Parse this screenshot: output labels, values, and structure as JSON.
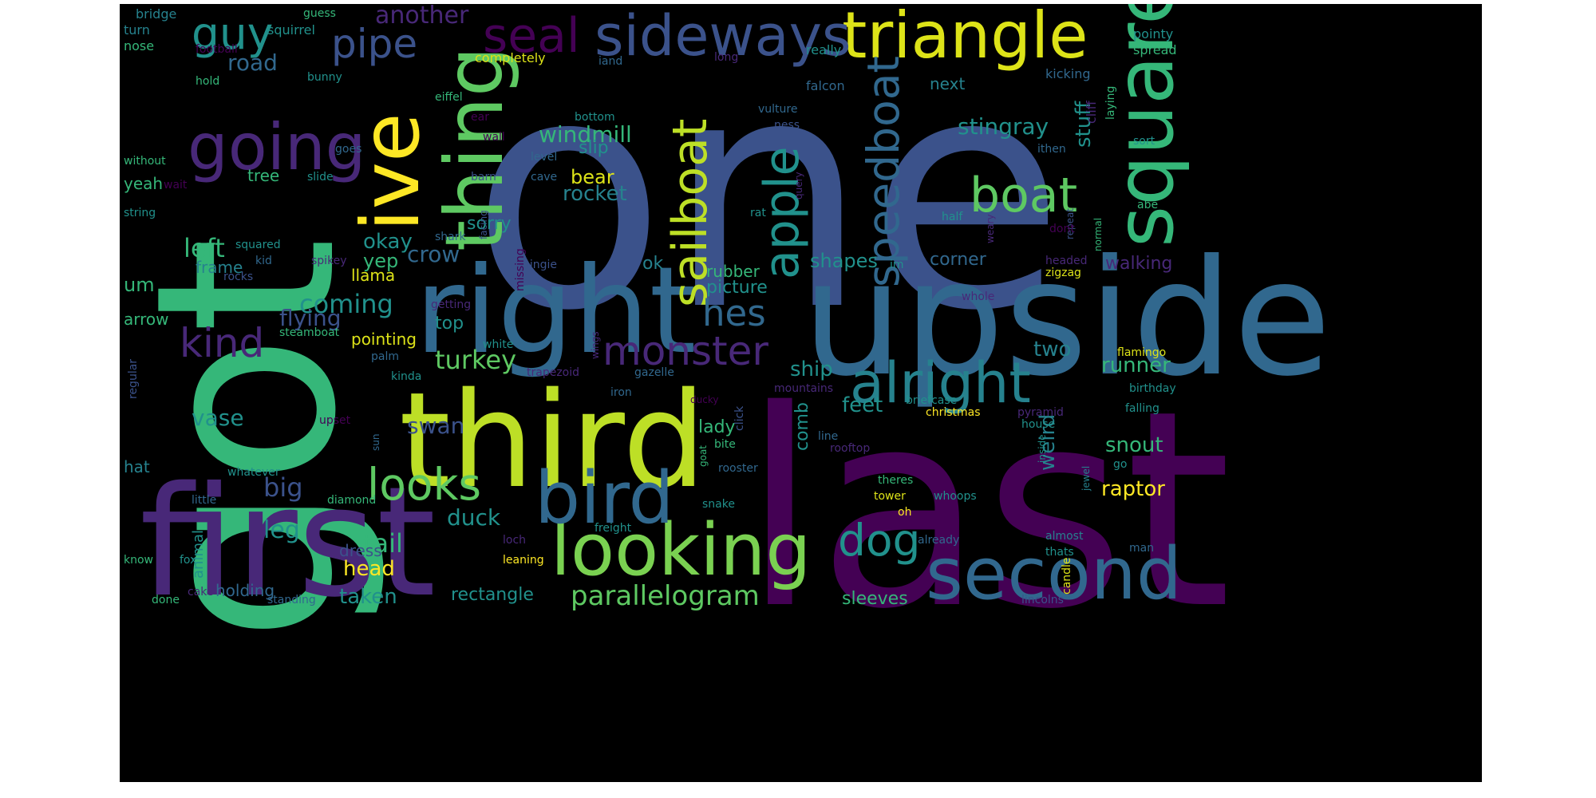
{
  "background_color": "#000000",
  "palette": [
    "#440154",
    "#3b528b",
    "#21918c",
    "#5ec962",
    "#fde725",
    "#31688e",
    "#35b779",
    "#bddf26"
  ],
  "words": [
    {
      "text": "one",
      "color": "#3b528b"
    },
    {
      "text": "last",
      "color": "#440154"
    },
    {
      "text": "got",
      "color": "#35b779"
    },
    {
      "text": "upside",
      "color": "#31688e"
    },
    {
      "text": "first",
      "color": "#482878"
    },
    {
      "text": "third",
      "color": "#bddf26"
    },
    {
      "text": "right",
      "color": "#31688e"
    },
    {
      "text": "ive",
      "color": "#fde725"
    },
    {
      "text": "thing",
      "color": "#5ec962"
    },
    {
      "text": "square",
      "color": "#35b779"
    },
    {
      "text": "triangle",
      "color": "#dde318"
    },
    {
      "text": "sideways",
      "color": "#3b528b"
    },
    {
      "text": "seal",
      "color": "#440154"
    },
    {
      "text": "going",
      "color": "#482878"
    },
    {
      "text": "looking",
      "color": "#7ad151"
    },
    {
      "text": "second",
      "color": "#31688e"
    },
    {
      "text": "bird",
      "color": "#31688e"
    },
    {
      "text": "alright",
      "color": "#26828e"
    },
    {
      "text": "monster",
      "color": "#482878"
    },
    {
      "text": "boat",
      "color": "#5ec962"
    },
    {
      "text": "apple",
      "color": "#21918c"
    },
    {
      "text": "sailboat",
      "color": "#bddf26"
    },
    {
      "text": "speedboat",
      "color": "#31688e"
    },
    {
      "text": "looks",
      "color": "#5ec962"
    },
    {
      "text": "dog",
      "color": "#21918c"
    },
    {
      "text": "guy",
      "color": "#21918c"
    },
    {
      "text": "pipe",
      "color": "#3b528b"
    },
    {
      "text": "kind",
      "color": "#482878"
    },
    {
      "text": "hes",
      "color": "#31688e"
    },
    {
      "text": "windmill",
      "color": "#35b779"
    },
    {
      "text": "parallelogram",
      "color": "#5ec962"
    },
    {
      "text": "stingray",
      "color": "#21918c"
    },
    {
      "text": "rocket",
      "color": "#26828e"
    },
    {
      "text": "big",
      "color": "#3b528b"
    },
    {
      "text": "coming",
      "color": "#21918c"
    },
    {
      "text": "turkey",
      "color": "#5ec962"
    },
    {
      "text": "left",
      "color": "#35b779"
    },
    {
      "text": "road",
      "color": "#31688e"
    },
    {
      "text": "crow",
      "color": "#31688e"
    },
    {
      "text": "flying",
      "color": "#3b528b"
    },
    {
      "text": "another",
      "color": "#482878"
    },
    {
      "text": "stuff",
      "color": "#21918c"
    },
    {
      "text": "two",
      "color": "#26828e"
    },
    {
      "text": "ship",
      "color": "#21918c"
    },
    {
      "text": "runner",
      "color": "#35b779"
    },
    {
      "text": "weird",
      "color": "#26828e"
    },
    {
      "text": "tail",
      "color": "#35b779"
    },
    {
      "text": "leg",
      "color": "#21918c"
    },
    {
      "text": "duck",
      "color": "#21918c"
    },
    {
      "text": "swan",
      "color": "#3b528b"
    },
    {
      "text": "vase",
      "color": "#21918c"
    },
    {
      "text": "okay",
      "color": "#21918c"
    },
    {
      "text": "bear",
      "color": "#dde318"
    },
    {
      "text": "shapes",
      "color": "#21918c"
    },
    {
      "text": "feet",
      "color": "#21918c"
    },
    {
      "text": "snout",
      "color": "#35b779"
    },
    {
      "text": "raptor",
      "color": "#fde725"
    },
    {
      "text": "taken",
      "color": "#21918c"
    },
    {
      "text": "head",
      "color": "#fde725"
    },
    {
      "text": "dress",
      "color": "#3b528b"
    },
    {
      "text": "yep",
      "color": "#35b779"
    },
    {
      "text": "top",
      "color": "#21918c"
    },
    {
      "text": "walking",
      "color": "#482878"
    },
    {
      "text": "corner",
      "color": "#31688e"
    },
    {
      "text": "sleeves",
      "color": "#35b779"
    },
    {
      "text": "rectangle",
      "color": "#21918c"
    },
    {
      "text": "comb",
      "color": "#21918c"
    },
    {
      "text": "um",
      "color": "#35b779"
    },
    {
      "text": "frame",
      "color": "#26828e"
    },
    {
      "text": "pointing",
      "color": "#dde318"
    },
    {
      "text": "lady",
      "color": "#35b779"
    },
    {
      "text": "rubber",
      "color": "#35b779"
    },
    {
      "text": "picture",
      "color": "#21918c"
    },
    {
      "text": "slip",
      "color": "#21918c"
    },
    {
      "text": "ok",
      "color": "#26828e"
    },
    {
      "text": "sorry",
      "color": "#21918c"
    },
    {
      "text": "llama",
      "color": "#dde318"
    },
    {
      "text": "next",
      "color": "#26828e"
    },
    {
      "text": "yeah",
      "color": "#35b779"
    },
    {
      "text": "tree",
      "color": "#35b779"
    },
    {
      "text": "arrow",
      "color": "#35b779"
    },
    {
      "text": "hat",
      "color": "#26828e"
    },
    {
      "text": "holding",
      "color": "#31688e"
    },
    {
      "text": "animal",
      "color": "#21918c"
    },
    {
      "text": "bridge",
      "color": "#26828e"
    },
    {
      "text": "squirrel",
      "color": "#21918c"
    },
    {
      "text": "guess",
      "color": "#35b779"
    },
    {
      "text": "completely",
      "color": "#dde318"
    },
    {
      "text": "long",
      "color": "#482878"
    },
    {
      "text": "iand",
      "color": "#31688e"
    },
    {
      "text": "really",
      "color": "#21918c"
    },
    {
      "text": "falcon",
      "color": "#31688e"
    },
    {
      "text": "pointy",
      "color": "#21918c"
    },
    {
      "text": "spread",
      "color": "#35b779"
    },
    {
      "text": "turn",
      "color": "#26828e"
    },
    {
      "text": "nose",
      "color": "#35b779"
    },
    {
      "text": "football",
      "color": "#440154"
    },
    {
      "text": "hold",
      "color": "#35b779"
    },
    {
      "text": "bunny",
      "color": "#21918c"
    },
    {
      "text": "kicking",
      "color": "#31688e"
    },
    {
      "text": "eiffel",
      "color": "#35b779"
    },
    {
      "text": "ear",
      "color": "#440154"
    },
    {
      "text": "bottom",
      "color": "#21918c"
    },
    {
      "text": "vulture",
      "color": "#31688e"
    },
    {
      "text": "ness",
      "color": "#3b528b"
    },
    {
      "text": "cliff",
      "color": "#482878"
    },
    {
      "text": "laying",
      "color": "#35b779"
    },
    {
      "text": "without",
      "color": "#35b779"
    },
    {
      "text": "goes",
      "color": "#31688e"
    },
    {
      "text": "wall",
      "color": "#440154"
    },
    {
      "text": "level",
      "color": "#31688e"
    },
    {
      "text": "ithen",
      "color": "#31688e"
    },
    {
      "text": "sort",
      "color": "#21918c"
    },
    {
      "text": "wait",
      "color": "#440154"
    },
    {
      "text": "slide",
      "color": "#21918c"
    },
    {
      "text": "barn",
      "color": "#3b528b"
    },
    {
      "text": "cave",
      "color": "#31688e"
    },
    {
      "text": "query",
      "color": "#482878"
    },
    {
      "text": "facing",
      "color": "#3b528b"
    },
    {
      "text": "repeat",
      "color": "#3b528b"
    },
    {
      "text": "abe",
      "color": "#35b779"
    },
    {
      "text": "string",
      "color": "#21918c"
    },
    {
      "text": "rat",
      "color": "#21918c"
    },
    {
      "text": "half",
      "color": "#21918c"
    },
    {
      "text": "normal",
      "color": "#35b779"
    },
    {
      "text": "squared",
      "color": "#21918c"
    },
    {
      "text": "shark",
      "color": "#31688e"
    },
    {
      "text": "missing",
      "color": "#440154"
    },
    {
      "text": "dont",
      "color": "#440154"
    },
    {
      "text": "weary",
      "color": "#482878"
    },
    {
      "text": "spikey",
      "color": "#482878"
    },
    {
      "text": "kid",
      "color": "#31688e"
    },
    {
      "text": "im",
      "color": "#21918c"
    },
    {
      "text": "headed",
      "color": "#482878"
    },
    {
      "text": "zigzag",
      "color": "#dde318"
    },
    {
      "text": "rocks",
      "color": "#3b528b"
    },
    {
      "text": "hingie",
      "color": "#3b528b"
    },
    {
      "text": "whole",
      "color": "#482878"
    },
    {
      "text": "getting",
      "color": "#482878"
    },
    {
      "text": "steamboat",
      "color": "#35b779"
    },
    {
      "text": "wings",
      "color": "#482878"
    },
    {
      "text": "flamingo",
      "color": "#dde318"
    },
    {
      "text": "regular",
      "color": "#3b528b"
    },
    {
      "text": "palm",
      "color": "#31688e"
    },
    {
      "text": "white",
      "color": "#21918c"
    },
    {
      "text": "trapezoid",
      "color": "#482878"
    },
    {
      "text": "gazelle",
      "color": "#31688e"
    },
    {
      "text": "mountains",
      "color": "#482878"
    },
    {
      "text": "birthday",
      "color": "#21918c"
    },
    {
      "text": "kinda",
      "color": "#21918c"
    },
    {
      "text": "iron",
      "color": "#31688e"
    },
    {
      "text": "ducky",
      "color": "#440154"
    },
    {
      "text": "briefcase",
      "color": "#21918c"
    },
    {
      "text": "falling",
      "color": "#21918c"
    },
    {
      "text": "upset",
      "color": "#440154"
    },
    {
      "text": "click",
      "color": "#3b528b"
    },
    {
      "text": "christmas",
      "color": "#fde725"
    },
    {
      "text": "pyramid",
      "color": "#482878"
    },
    {
      "text": "house",
      "color": "#21918c"
    },
    {
      "text": "sun",
      "color": "#31688e"
    },
    {
      "text": "line",
      "color": "#31688e"
    },
    {
      "text": "bite",
      "color": "#35b779"
    },
    {
      "text": "inside",
      "color": "#21918c"
    },
    {
      "text": "whatever",
      "color": "#21918c"
    },
    {
      "text": "rooftop",
      "color": "#482878"
    },
    {
      "text": "goat",
      "color": "#35b779"
    },
    {
      "text": "jewel",
      "color": "#26828e"
    },
    {
      "text": "go",
      "color": "#21918c"
    },
    {
      "text": "rooster",
      "color": "#31688e"
    },
    {
      "text": "theres",
      "color": "#35b779"
    },
    {
      "text": "tower",
      "color": "#dde318"
    },
    {
      "text": "oh",
      "color": "#fde725"
    },
    {
      "text": "little",
      "color": "#31688e"
    },
    {
      "text": "diamond",
      "color": "#35b779"
    },
    {
      "text": "snake",
      "color": "#21918c"
    },
    {
      "text": "whoops",
      "color": "#21918c"
    },
    {
      "text": "freight",
      "color": "#21918c"
    },
    {
      "text": "loch",
      "color": "#482878"
    },
    {
      "text": "already",
      "color": "#31688e"
    },
    {
      "text": "almost",
      "color": "#26828e"
    },
    {
      "text": "thats",
      "color": "#21918c"
    },
    {
      "text": "man",
      "color": "#31688e"
    },
    {
      "text": "know",
      "color": "#35b779"
    },
    {
      "text": "fox",
      "color": "#21918c"
    },
    {
      "text": "leaning",
      "color": "#fde725"
    },
    {
      "text": "candle",
      "color": "#dde318"
    },
    {
      "text": "cake",
      "color": "#482878"
    },
    {
      "text": "done",
      "color": "#35b779"
    },
    {
      "text": "standing",
      "color": "#31688e"
    },
    {
      "text": "lincolns",
      "color": "#3b528b"
    }
  ]
}
